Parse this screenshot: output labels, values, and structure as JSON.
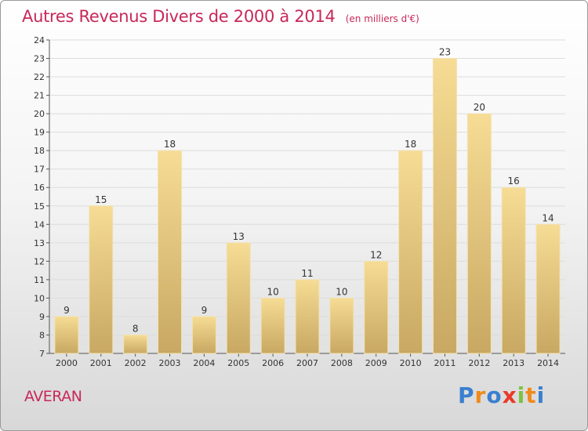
{
  "title": "Autres Revenus Divers de 2000 à 2014",
  "unit": "(en milliers d'€)",
  "commune": "AVERAN",
  "logo": {
    "letters": [
      "P",
      "r",
      "o",
      "x",
      "i",
      "t",
      "i"
    ],
    "colors": [
      "#3a7fd0",
      "#f08a1c",
      "#3a7fd0",
      "#e83a2a",
      "#7cc242",
      "#f08a1c",
      "#3a7fd0"
    ]
  },
  "chart_data": {
    "type": "bar",
    "title": "Autres Revenus Divers de 2000 à 2014",
    "xlabel": "",
    "ylabel": "",
    "categories": [
      "2000",
      "2001",
      "2002",
      "2003",
      "2004",
      "2005",
      "2006",
      "2007",
      "2008",
      "2009",
      "2010",
      "2011",
      "2012",
      "2013",
      "2014"
    ],
    "values": [
      9,
      15,
      8,
      18,
      9,
      13,
      10,
      11,
      10,
      12,
      18,
      23,
      20,
      16,
      14
    ],
    "ylim": [
      7,
      24
    ],
    "yticks": [
      7,
      8,
      9,
      10,
      11,
      12,
      13,
      14,
      15,
      16,
      17,
      18,
      19,
      20,
      21,
      22,
      23,
      24
    ],
    "grid": true,
    "bar_color": "#e8c878"
  }
}
